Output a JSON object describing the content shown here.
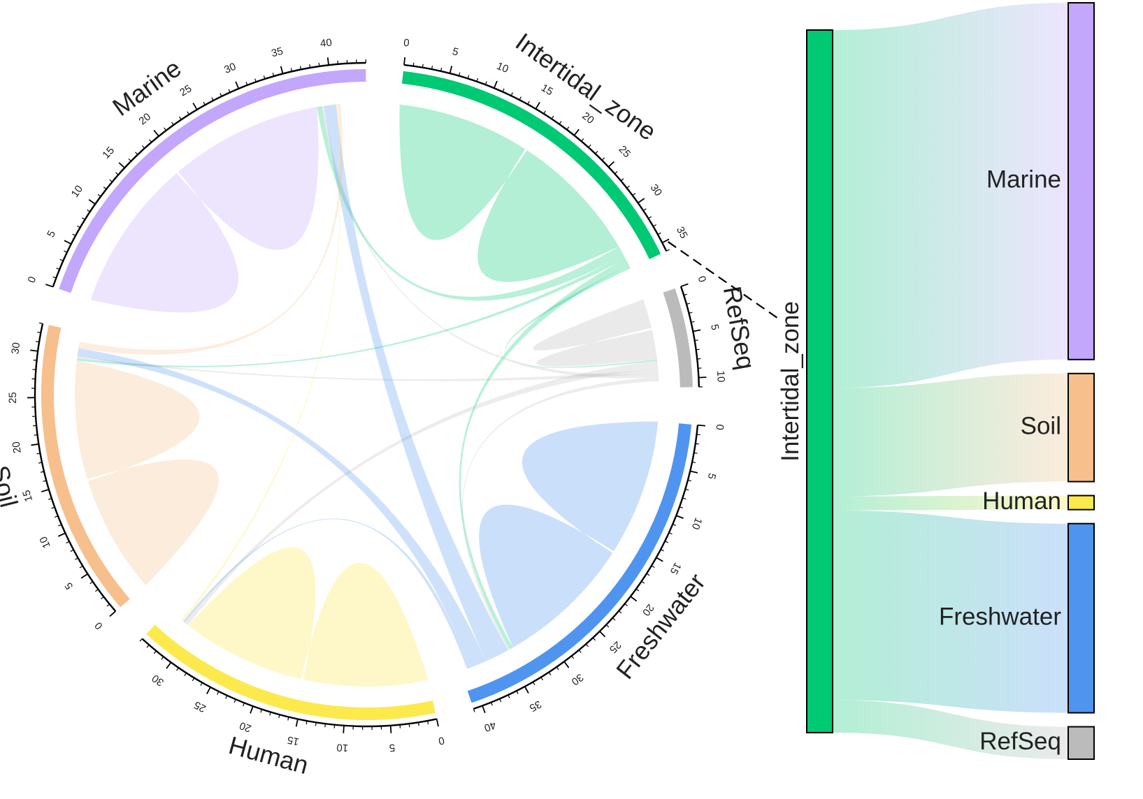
{
  "chart_data": [
    {
      "type": "chord",
      "sectors": [
        {
          "name": "Intertidal_zone",
          "total": 36,
          "color": "#00C973",
          "tick_step": 5
        },
        {
          "name": "RefSeq",
          "total": 11,
          "color": "#BBBBBB",
          "tick_step": 5
        },
        {
          "name": "Freshwater",
          "total": 41,
          "color": "#4F95EF",
          "tick_step": 5
        },
        {
          "name": "Human",
          "total": 34,
          "color": "#FCE94C",
          "tick_step": 5
        },
        {
          "name": "Soil",
          "total": 33,
          "color": "#F6BF8C",
          "tick_step": 5
        },
        {
          "name": "Marine",
          "total": 44,
          "color": "#C2A7FC",
          "tick_step": 5
        }
      ],
      "links": [
        {
          "from": "Intertidal_zone",
          "to": "Intertidal_zone",
          "value": 33
        },
        {
          "from": "Intertidal_zone",
          "to": "Marine",
          "value": 1.2
        },
        {
          "from": "Intertidal_zone",
          "to": "Soil",
          "value": 0.5
        },
        {
          "from": "Intertidal_zone",
          "to": "Freshwater",
          "value": 0.9
        },
        {
          "from": "Intertidal_zone",
          "to": "RefSeq",
          "value": 0.4
        },
        {
          "from": "RefSeq",
          "to": "RefSeq",
          "value": 7.5
        },
        {
          "from": "RefSeq",
          "to": "Human",
          "value": 1.0
        },
        {
          "from": "RefSeq",
          "to": "Soil",
          "value": 0.5
        },
        {
          "from": "RefSeq",
          "to": "Marine",
          "value": 0.5
        },
        {
          "from": "RefSeq",
          "to": "Freshwater",
          "value": 0.5
        },
        {
          "from": "Freshwater",
          "to": "Freshwater",
          "value": 34
        },
        {
          "from": "Freshwater",
          "to": "Marine",
          "value": 3
        },
        {
          "from": "Freshwater",
          "to": "Soil",
          "value": 2
        },
        {
          "from": "Freshwater",
          "to": "Human",
          "value": 0.5
        },
        {
          "from": "Human",
          "to": "Human",
          "value": 31
        },
        {
          "from": "Human",
          "to": "Marine",
          "value": 0.3
        },
        {
          "from": "Soil",
          "to": "Soil",
          "value": 29.5
        },
        {
          "from": "Soil",
          "to": "Marine",
          "value": 0.8
        },
        {
          "from": "Marine",
          "to": "Marine",
          "value": 38
        }
      ]
    },
    {
      "type": "sankey",
      "source": {
        "name": "Intertidal_zone",
        "color": "#00C973"
      },
      "targets": [
        {
          "name": "Marine",
          "value": 33,
          "color": "#C2A7FC"
        },
        {
          "name": "Soil",
          "value": 10,
          "color": "#F6BF8C"
        },
        {
          "name": "Human",
          "value": 1.3,
          "color": "#FCE94C"
        },
        {
          "name": "Freshwater",
          "value": 17.5,
          "color": "#4F95EF"
        },
        {
          "name": "RefSeq",
          "value": 3,
          "color": "#BBBBBB"
        }
      ]
    }
  ]
}
